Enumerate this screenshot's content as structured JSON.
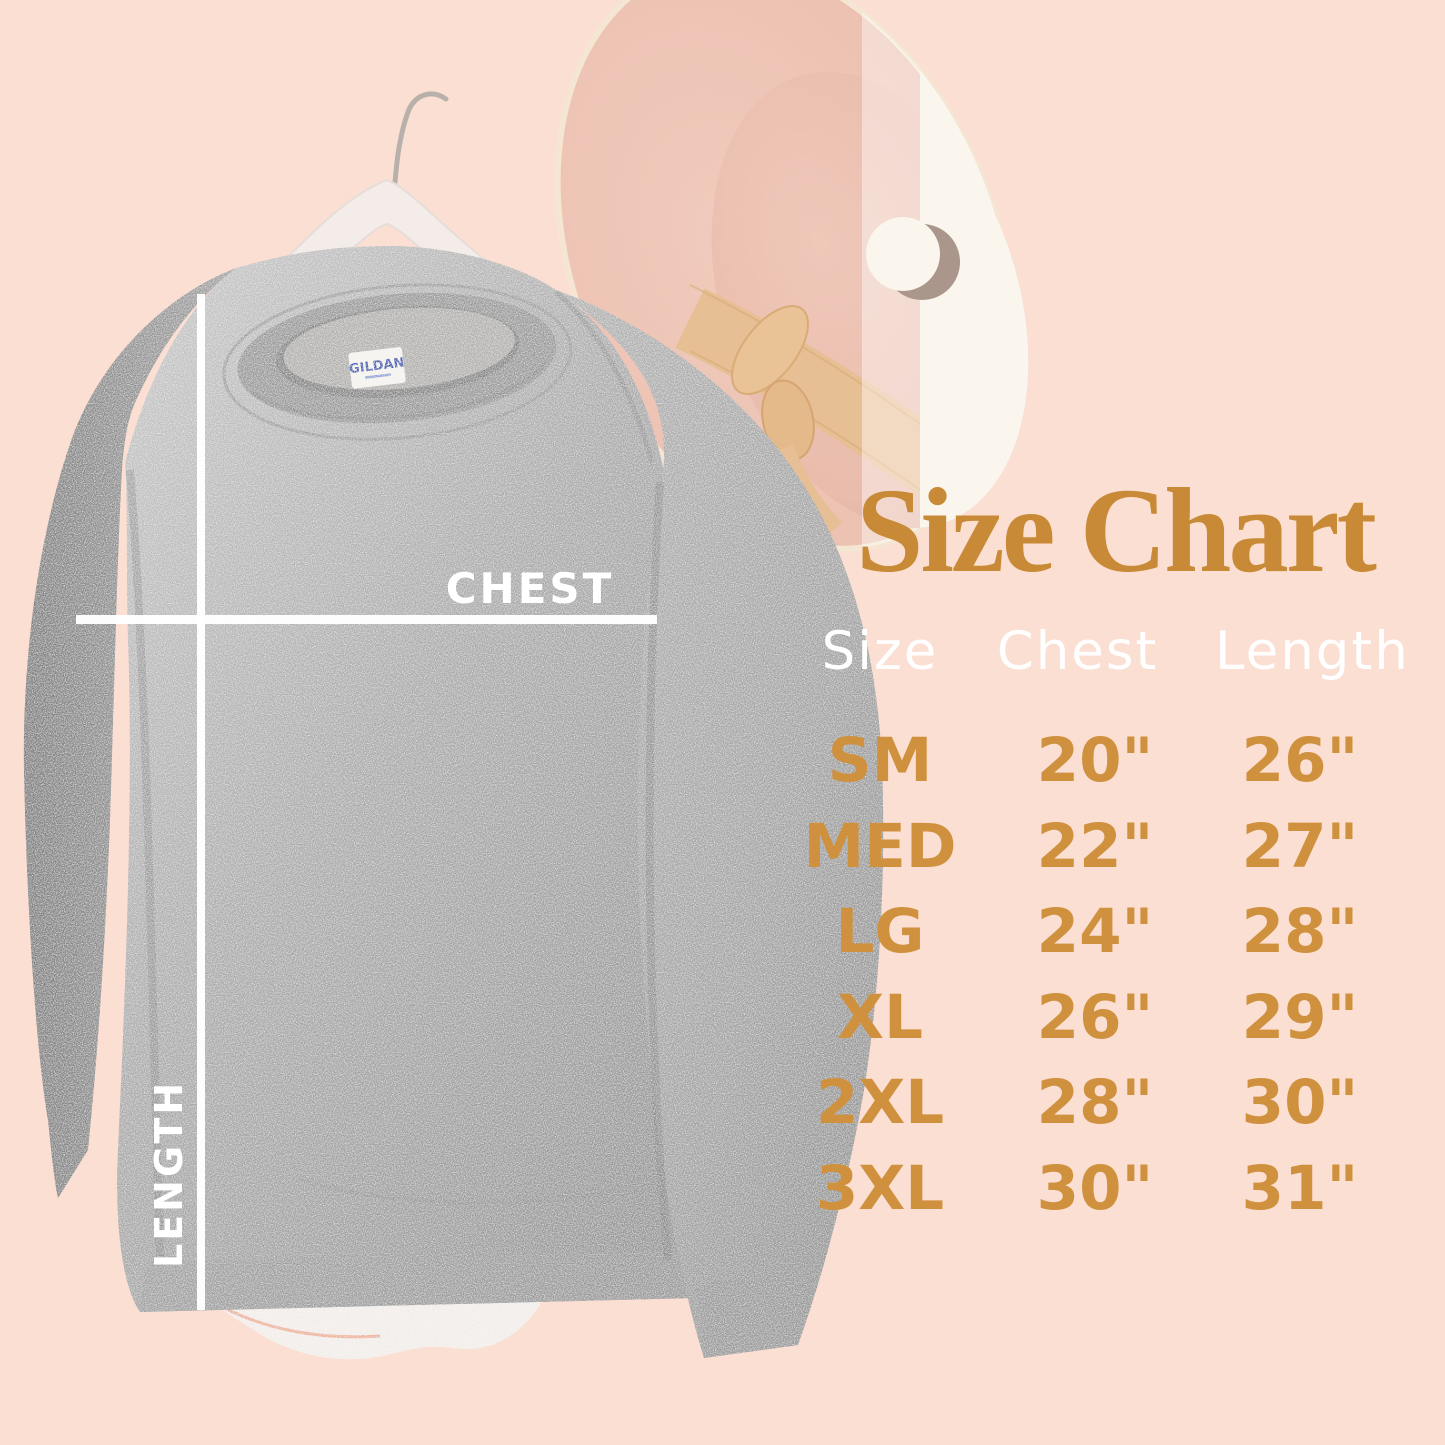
{
  "background_color": "#fbdfd3",
  "accent_orange": "#c88a36",
  "value_orange": "#d0913f",
  "photo": {
    "garment": "grey-crewneck-sweatshirt-on-hanger",
    "hat": "blush-wide-brim-fedora",
    "tag_brand": "GILDAN",
    "measure_labels": {
      "chest": "CHEST",
      "length": "LENGTH"
    }
  },
  "size_chart": {
    "title": "Size Chart",
    "columns": [
      "Size",
      "Chest",
      "Length"
    ],
    "rows": [
      {
        "size": "SM",
        "chest": "20\"",
        "length": "26\""
      },
      {
        "size": "MED",
        "chest": "22\"",
        "length": "27\""
      },
      {
        "size": "LG",
        "chest": "24\"",
        "length": "28\""
      },
      {
        "size": "XL",
        "chest": "26\"",
        "length": "29\""
      },
      {
        "size": "2XL",
        "chest": "28\"",
        "length": "30\""
      },
      {
        "size": "3XL",
        "chest": "30\"",
        "length": "31\""
      }
    ]
  },
  "chart_data": {
    "type": "table",
    "title": "Size Chart",
    "columns": [
      "Size",
      "Chest",
      "Length"
    ],
    "rows": [
      [
        "SM",
        "20\"",
        "26\""
      ],
      [
        "MED",
        "22\"",
        "27\""
      ],
      [
        "LG",
        "24\"",
        "28\""
      ],
      [
        "XL",
        "26\"",
        "29\""
      ],
      [
        "2XL",
        "28\"",
        "30\""
      ],
      [
        "3XL",
        "30\"",
        "31\""
      ]
    ],
    "units": "inches"
  }
}
